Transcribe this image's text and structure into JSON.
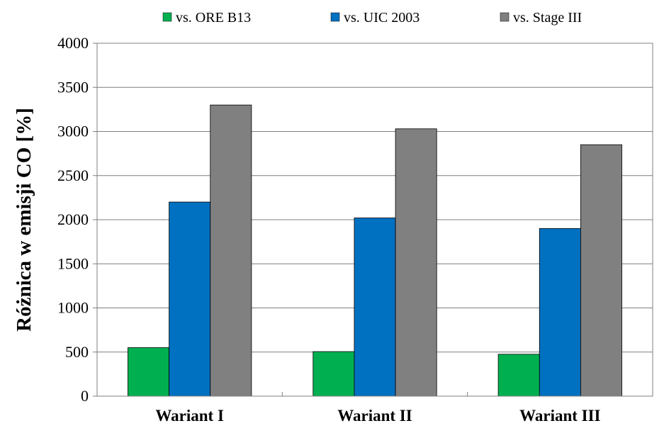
{
  "chart_data": {
    "type": "bar",
    "title": "",
    "xlabel": "",
    "ylabel": "Różnica w emisji CO [%]",
    "ylim": [
      0,
      4000
    ],
    "yticks": [
      0,
      500,
      1000,
      1500,
      2000,
      2500,
      3000,
      3500,
      4000
    ],
    "categories": [
      "Wariant I",
      "Wariant II",
      "Wariant III"
    ],
    "series": [
      {
        "name": "vs. ORE B13",
        "color": "#00b050",
        "values": [
          550,
          505,
          475
        ]
      },
      {
        "name": "vs. UIC 2003",
        "color": "#0070c0",
        "values": [
          2200,
          2020,
          1900
        ]
      },
      {
        "name": "vs. Stage III",
        "color": "#808080",
        "values": [
          3300,
          3030,
          2850
        ]
      }
    ],
    "grid": true,
    "legend_position": "top"
  }
}
